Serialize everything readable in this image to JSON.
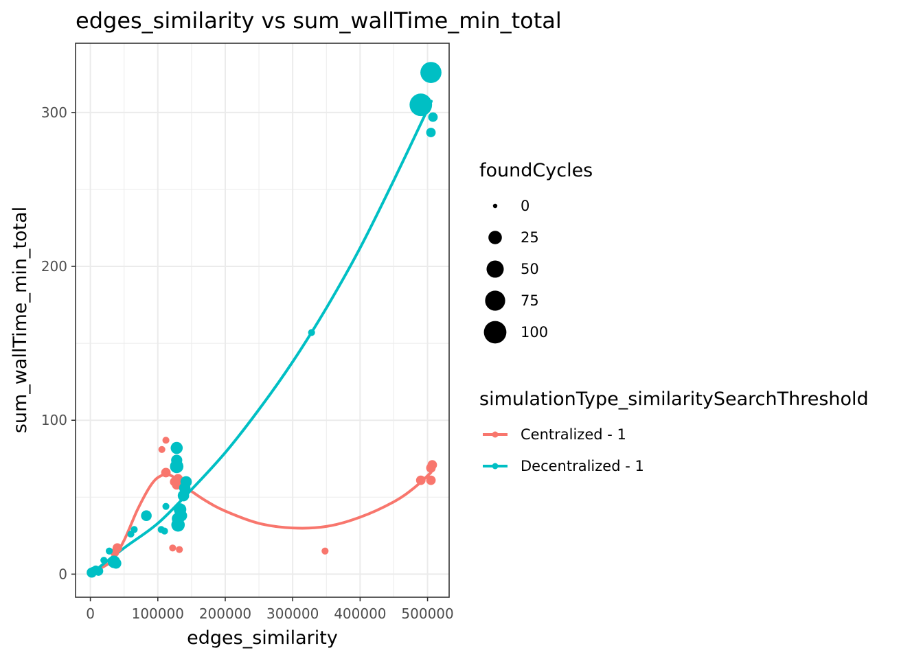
{
  "chart_data": {
    "type": "scatter",
    "title": "edges_similarity  vs  sum_wallTime_min_total",
    "xlabel": "edges_similarity",
    "ylabel": "sum_wallTime_min_total",
    "xlim": [
      -22000,
      532000
    ],
    "ylim": [
      -15,
      345
    ],
    "x_ticks": [
      0,
      100000,
      200000,
      300000,
      400000,
      500000
    ],
    "x_tick_labels": [
      "0",
      "100000",
      "200000",
      "300000",
      "400000",
      "500000"
    ],
    "y_ticks": [
      0,
      100,
      200,
      300
    ],
    "y_tick_labels": [
      "0",
      "100",
      "200",
      "300"
    ],
    "grid": true,
    "size_legend": {
      "title": "foundCycles",
      "entries": [
        {
          "label": "0",
          "value": 0
        },
        {
          "label": "25",
          "value": 25
        },
        {
          "label": "50",
          "value": 50
        },
        {
          "label": "75",
          "value": 75
        },
        {
          "label": "100",
          "value": 100
        }
      ]
    },
    "color_legend": {
      "title": "simulationType_similaritySearchThreshold",
      "placement": "right"
    },
    "series": [
      {
        "name": "Centralized - 1",
        "color": "#F8766D",
        "points": [
          {
            "x": 106000,
            "y": 81,
            "size": 2
          },
          {
            "x": 112000,
            "y": 87,
            "size": 2
          },
          {
            "x": 112000,
            "y": 66,
            "size": 8
          },
          {
            "x": 125000,
            "y": 60,
            "size": 8
          },
          {
            "x": 128000,
            "y": 58,
            "size": 8
          },
          {
            "x": 130000,
            "y": 62,
            "size": 8
          },
          {
            "x": 133000,
            "y": 60,
            "size": 10
          },
          {
            "x": 138000,
            "y": 58,
            "size": 8
          },
          {
            "x": 122000,
            "y": 17,
            "size": 2
          },
          {
            "x": 132000,
            "y": 16,
            "size": 2
          },
          {
            "x": 40000,
            "y": 17,
            "size": 8
          },
          {
            "x": 36000,
            "y": 14,
            "size": 6
          },
          {
            "x": 348000,
            "y": 15,
            "size": 2
          },
          {
            "x": 490000,
            "y": 61,
            "size": 8
          },
          {
            "x": 505000,
            "y": 69,
            "size": 8
          },
          {
            "x": 507000,
            "y": 71,
            "size": 8
          },
          {
            "x": 505000,
            "y": 61,
            "size": 8
          }
        ],
        "trend": [
          {
            "x": 0,
            "y": 1
          },
          {
            "x": 30000,
            "y": 8
          },
          {
            "x": 50000,
            "y": 22
          },
          {
            "x": 70000,
            "y": 42
          },
          {
            "x": 90000,
            "y": 58
          },
          {
            "x": 105000,
            "y": 64
          },
          {
            "x": 120000,
            "y": 64
          },
          {
            "x": 140000,
            "y": 57
          },
          {
            "x": 170000,
            "y": 48
          },
          {
            "x": 200000,
            "y": 41
          },
          {
            "x": 250000,
            "y": 33
          },
          {
            "x": 300000,
            "y": 30
          },
          {
            "x": 350000,
            "y": 31
          },
          {
            "x": 400000,
            "y": 37
          },
          {
            "x": 450000,
            "y": 47
          },
          {
            "x": 480000,
            "y": 56
          },
          {
            "x": 505000,
            "y": 66
          }
        ]
      },
      {
        "name": "Decentralized - 1",
        "color": "#00BFC4",
        "points": [
          {
            "x": 2000,
            "y": 1,
            "size": 10
          },
          {
            "x": 5000,
            "y": 2,
            "size": 6
          },
          {
            "x": 8000,
            "y": 3,
            "size": 4
          },
          {
            "x": 12000,
            "y": 2,
            "size": 8
          },
          {
            "x": 20000,
            "y": 9,
            "size": 2
          },
          {
            "x": 28000,
            "y": 15,
            "size": 2
          },
          {
            "x": 35000,
            "y": 8,
            "size": 20
          },
          {
            "x": 38000,
            "y": 7,
            "size": 12
          },
          {
            "x": 60000,
            "y": 26,
            "size": 2
          },
          {
            "x": 65000,
            "y": 29,
            "size": 2
          },
          {
            "x": 83000,
            "y": 38,
            "size": 12
          },
          {
            "x": 105000,
            "y": 29,
            "size": 2
          },
          {
            "x": 110000,
            "y": 28,
            "size": 2
          },
          {
            "x": 112000,
            "y": 44,
            "size": 2
          },
          {
            "x": 128000,
            "y": 82,
            "size": 18
          },
          {
            "x": 128000,
            "y": 74,
            "size": 14
          },
          {
            "x": 128000,
            "y": 70,
            "size": 25
          },
          {
            "x": 130000,
            "y": 32,
            "size": 25
          },
          {
            "x": 130000,
            "y": 36,
            "size": 20
          },
          {
            "x": 133000,
            "y": 42,
            "size": 20
          },
          {
            "x": 135000,
            "y": 38,
            "size": 15
          },
          {
            "x": 138000,
            "y": 51,
            "size": 15
          },
          {
            "x": 140000,
            "y": 56,
            "size": 15
          },
          {
            "x": 142000,
            "y": 60,
            "size": 15
          },
          {
            "x": 328000,
            "y": 157,
            "size": 2
          },
          {
            "x": 490000,
            "y": 305,
            "size": 100
          },
          {
            "x": 505000,
            "y": 326,
            "size": 85
          },
          {
            "x": 505000,
            "y": 287,
            "size": 8
          },
          {
            "x": 508000,
            "y": 297,
            "size": 8
          }
        ],
        "trend": [
          {
            "x": 0,
            "y": 0
          },
          {
            "x": 50000,
            "y": 17
          },
          {
            "x": 100000,
            "y": 33
          },
          {
            "x": 150000,
            "y": 55
          },
          {
            "x": 200000,
            "y": 79
          },
          {
            "x": 250000,
            "y": 107
          },
          {
            "x": 300000,
            "y": 138
          },
          {
            "x": 350000,
            "y": 173
          },
          {
            "x": 400000,
            "y": 212
          },
          {
            "x": 450000,
            "y": 256
          },
          {
            "x": 500000,
            "y": 302
          },
          {
            "x": 505000,
            "y": 307
          }
        ]
      }
    ]
  }
}
